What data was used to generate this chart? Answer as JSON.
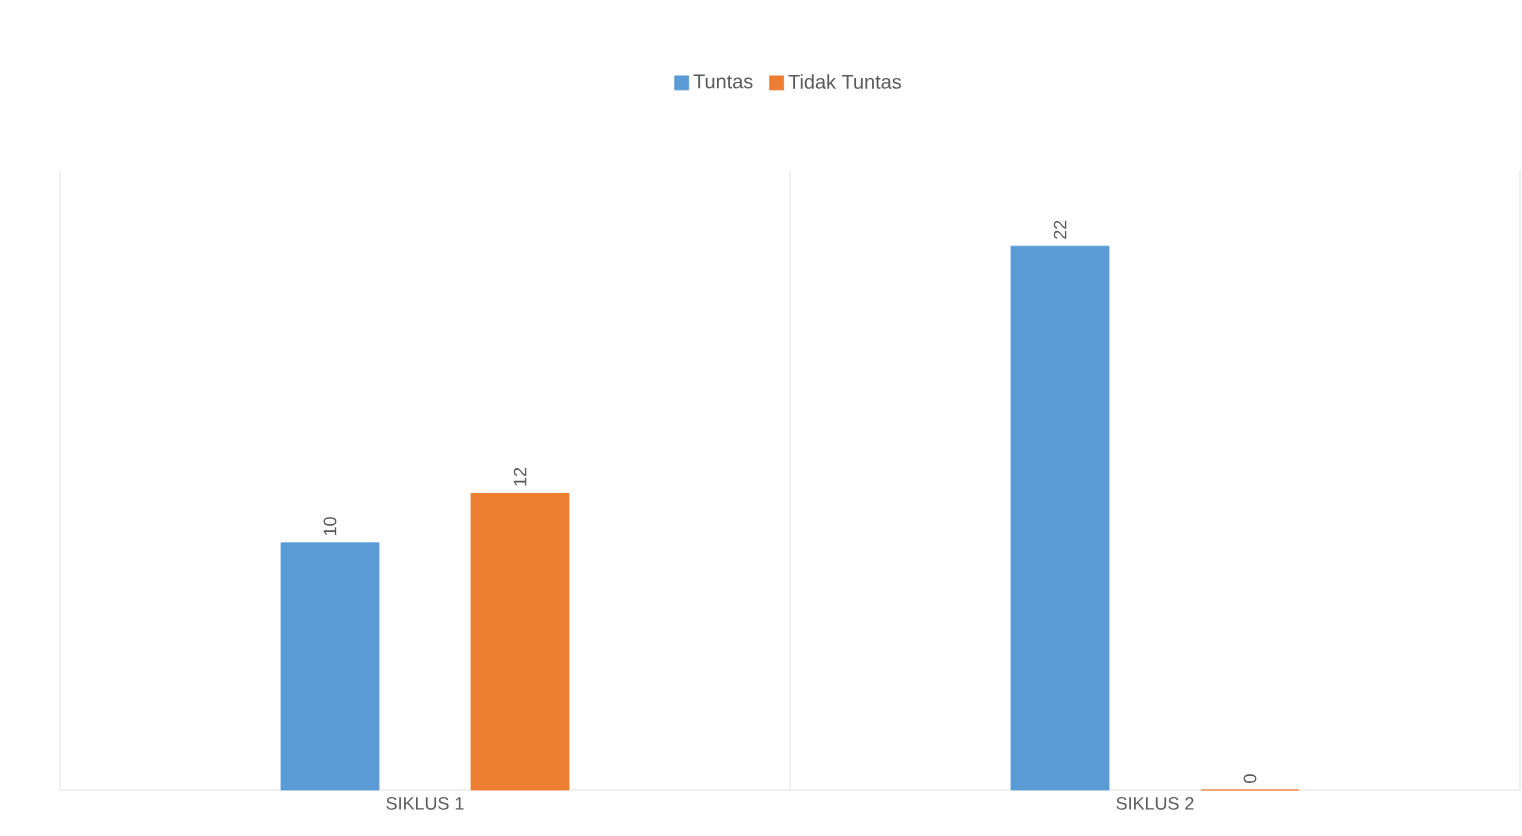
{
  "chart_data": {
    "type": "bar",
    "categories": [
      "SIKLUS 1",
      "SIKLUS 2"
    ],
    "series": [
      {
        "name": "Tuntas",
        "color": "#5b9bd5",
        "values": [
          10,
          22
        ]
      },
      {
        "name": "Tidak Tuntas",
        "color": "#ed7d31",
        "values": [
          12,
          0
        ]
      }
    ],
    "relative": false,
    "data_labels": true,
    "grid": "x",
    "legend": "top"
  }
}
